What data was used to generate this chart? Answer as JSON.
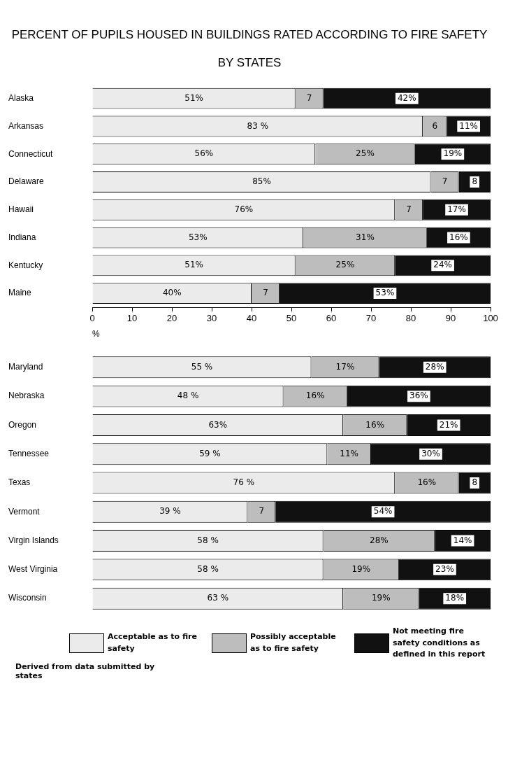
{
  "chart_data": [
    {
      "type": "bar",
      "orientation": "horizontal",
      "stacked": true,
      "title": "PERCENT OF PUPILS HOUSED IN BUILDINGS RATED ACCORDING TO FIRE SAFETY",
      "subtitle": "BY STATES",
      "xlabel": "%",
      "categories": [
        "Alaska",
        "Arkansas",
        "Connecticut",
        "Delaware",
        "Hawaii",
        "Indiana",
        "Kentucky",
        "Maine"
      ],
      "xlim": [
        0,
        100
      ],
      "xticks": [
        0,
        10,
        20,
        30,
        40,
        50,
        60,
        70,
        80,
        90,
        100
      ],
      "grid": false,
      "legend": false,
      "series": [
        {
          "color": "#ebebeb",
          "values": [
            51,
            83,
            56,
            85,
            76,
            53,
            51,
            40
          ],
          "value_labels": [
            "51%",
            "83 %",
            "56%",
            "85%",
            "76%",
            "53%",
            "51%",
            "40%"
          ]
        },
        {
          "color": "#bdbdbd",
          "values": [
            7,
            6,
            25,
            7,
            7,
            31,
            25,
            7
          ],
          "value_labels": [
            "7",
            "6",
            "25%",
            "7",
            "7",
            "31%",
            "25%",
            "7"
          ]
        },
        {
          "color": "#111111",
          "values": [
            42,
            11,
            19,
            8,
            17,
            16,
            24,
            53
          ],
          "value_labels": [
            "42%",
            "11%",
            "19%",
            "8",
            "17%",
            "16%",
            "24%",
            "53%"
          ]
        }
      ]
    },
    {
      "type": "bar",
      "orientation": "horizontal",
      "stacked": true,
      "categories": [
        "Maryland",
        "Nebraska",
        "Oregon",
        "Tennessee",
        "Texas",
        "Vermont",
        "Virgin Islands",
        "West Virginia",
        "Wisconsin"
      ],
      "xlim": [
        0,
        100
      ],
      "tick_labels": "y",
      "grid": false,
      "legend": "bottom",
      "annotations": [
        "Derived from data submitted by states"
      ],
      "series": [
        {
          "name": "Acceptable as to fire safety",
          "color": "#ebebeb",
          "values": [
            55,
            48,
            63,
            59,
            76,
            39,
            58,
            58,
            63
          ],
          "value_labels": [
            "55 %",
            "48 %",
            "63%",
            "59 %",
            "76 %",
            "39 %",
            "58 %",
            "58 %",
            "63 %"
          ]
        },
        {
          "name": "Possibly acceptable as to fire safety",
          "color": "#bdbdbd",
          "values": [
            17,
            16,
            16,
            11,
            16,
            7,
            28,
            19,
            19
          ],
          "value_labels": [
            "17%",
            "16%",
            "16%",
            "11%",
            "16%",
            "7",
            "28%",
            "19%",
            "19%"
          ]
        },
        {
          "name": "Not meeting fire safety conditions as defined in this report",
          "color": "#111111",
          "values": [
            28,
            36,
            21,
            30,
            8,
            54,
            14,
            23,
            18
          ],
          "value_labels": [
            "28%",
            "36%",
            "21%",
            "30%",
            "8",
            "54%",
            "14%",
            "23%",
            "18%"
          ]
        }
      ]
    }
  ]
}
